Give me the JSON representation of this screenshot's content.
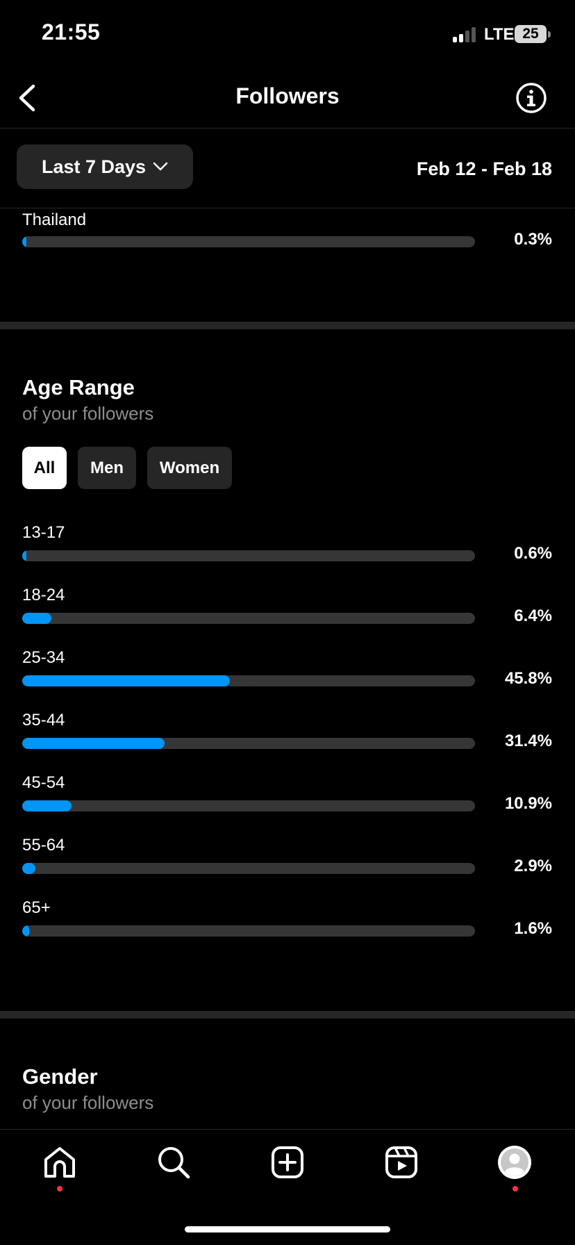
{
  "status_bar": {
    "time": "21:55",
    "network": "LTE",
    "battery": "25"
  },
  "header": {
    "title": "Followers",
    "back_icon": "chevron-left-icon",
    "info_icon": "info-icon"
  },
  "filter": {
    "range_label": "Last 7 Days",
    "date_range": "Feb 12 - Feb 18"
  },
  "countries": {
    "items": [
      {
        "label": "Thailand",
        "percent": "0.3%",
        "value": 0.3
      }
    ]
  },
  "age_range": {
    "title": "Age Range",
    "subtitle": "of your followers",
    "chips": [
      "All",
      "Men",
      "Women"
    ],
    "selected_chip": "All",
    "bars": [
      {
        "label": "13-17",
        "percent": "0.6%",
        "value": 0.6
      },
      {
        "label": "18-24",
        "percent": "6.4%",
        "value": 6.4
      },
      {
        "label": "25-34",
        "percent": "45.8%",
        "value": 45.8
      },
      {
        "label": "35-44",
        "percent": "31.4%",
        "value": 31.4
      },
      {
        "label": "45-54",
        "percent": "10.9%",
        "value": 10.9
      },
      {
        "label": "55-64",
        "percent": "2.9%",
        "value": 2.9
      },
      {
        "label": "65+",
        "percent": "1.6%",
        "value": 1.6
      }
    ]
  },
  "gender": {
    "title": "Gender",
    "subtitle": "of your followers"
  },
  "colors": {
    "accent": "#0095f6",
    "track": "#363636",
    "notification": "#ff3040"
  },
  "nav": {
    "items": [
      "home-icon",
      "search-icon",
      "create-icon",
      "reels-icon",
      "profile-avatar"
    ]
  }
}
